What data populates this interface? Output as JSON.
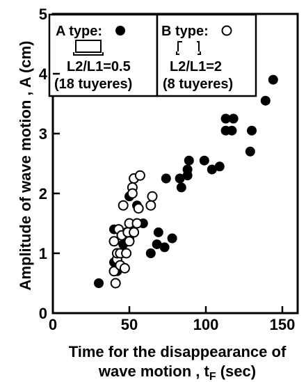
{
  "chart_data": {
    "type": "scatter",
    "xlabel_line1": "Time for the disappearance of",
    "xlabel_line2": "wave motion , t",
    "xlabel_sub": "F",
    "xlabel_unit": " (sec)",
    "ylabel": "Amplitude of wave motion , A (cm)",
    "xlim": [
      0,
      160
    ],
    "ylim": [
      0,
      5
    ],
    "x_ticks": [
      0,
      50,
      100,
      150
    ],
    "x_tick_labels": [
      "0",
      "50",
      "100",
      "150"
    ],
    "y_ticks": [
      0,
      1,
      2,
      3,
      4,
      5
    ],
    "y_tick_labels": [
      "0",
      "1",
      "2",
      "3",
      "4",
      "5"
    ],
    "grid": false,
    "legend_position": "top-left",
    "series": [
      {
        "name": "A type",
        "marker": "filled-circle",
        "color": "#000000",
        "legend": {
          "title": "A type:",
          "ratio": "L2/L1=0.5",
          "count": "(18 tuyeres)"
        },
        "points": [
          [
            30,
            0.5
          ],
          [
            40,
            0.85
          ],
          [
            40,
            1.4
          ],
          [
            42,
            0.7
          ],
          [
            45,
            1.0
          ],
          [
            46,
            1.15
          ],
          [
            48,
            1.35
          ],
          [
            50,
            1.25
          ],
          [
            50,
            1.95
          ],
          [
            55,
            1.8
          ],
          [
            59,
            1.5
          ],
          [
            64,
            1.0
          ],
          [
            68,
            1.15
          ],
          [
            69,
            1.35
          ],
          [
            73,
            1.1
          ],
          [
            74,
            2.25
          ],
          [
            78,
            1.25
          ],
          [
            83,
            2.25
          ],
          [
            84,
            2.1
          ],
          [
            88,
            2.3
          ],
          [
            88,
            2.4
          ],
          [
            89,
            2.55
          ],
          [
            99,
            2.55
          ],
          [
            104,
            2.4
          ],
          [
            109,
            2.45
          ],
          [
            113,
            3.05
          ],
          [
            113,
            3.25
          ],
          [
            117,
            3.05
          ],
          [
            118,
            3.25
          ],
          [
            129,
            2.7
          ],
          [
            130,
            3.05
          ],
          [
            139,
            3.55
          ],
          [
            144,
            3.9
          ]
        ]
      },
      {
        "name": "B type",
        "marker": "open-circle",
        "color": "#000000",
        "legend": {
          "title": "B type:",
          "ratio": "L2/L1=2",
          "count": "(8 tuyeres)"
        },
        "points": [
          [
            40,
            0.7
          ],
          [
            40,
            1.2
          ],
          [
            41,
            0.5
          ],
          [
            42,
            0.9
          ],
          [
            42,
            1.0
          ],
          [
            43,
            1.4
          ],
          [
            44,
            0.8
          ],
          [
            44,
            1.0
          ],
          [
            45,
            1.3
          ],
          [
            46,
            1.8
          ],
          [
            47,
            0.75
          ],
          [
            48,
            1.0
          ],
          [
            49,
            1.35
          ],
          [
            50,
            1.2
          ],
          [
            50,
            1.5
          ],
          [
            52,
            2.1
          ],
          [
            52,
            2.0
          ],
          [
            53,
            1.35
          ],
          [
            53,
            2.25
          ],
          [
            55,
            1.5
          ],
          [
            56,
            1.75
          ],
          [
            57,
            2.3
          ],
          [
            64,
            1.8
          ],
          [
            65,
            1.95
          ]
        ]
      }
    ]
  }
}
